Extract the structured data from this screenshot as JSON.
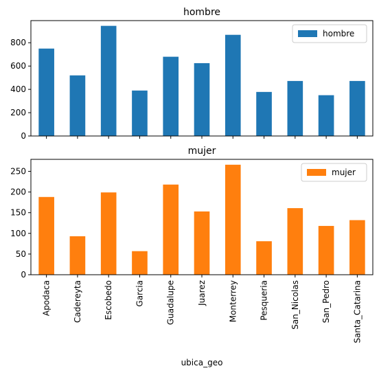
{
  "chart_data": [
    {
      "type": "bar",
      "title": "hombre",
      "categories": [
        "Apodaca",
        "Cadereyta",
        "Escobedo",
        "Garcia",
        "Guadalupe",
        "Juarez",
        "Monterrey",
        "Pesqueria",
        "San_Nicolas",
        "San_Pedro",
        "Santa_Catarina"
      ],
      "series": [
        {
          "name": "hombre",
          "color": "#1f77b4",
          "values": [
            750,
            520,
            945,
            390,
            680,
            625,
            868,
            378,
            472,
            350,
            472
          ]
        }
      ],
      "ylim": [
        0,
        990
      ],
      "yticks": [
        0,
        200,
        400,
        600,
        800
      ],
      "xlabel": "",
      "legend": "top-right",
      "grid": false,
      "show_xtick_labels": false
    },
    {
      "type": "bar",
      "title": "mujer",
      "categories": [
        "Apodaca",
        "Cadereyta",
        "Escobedo",
        "Garcia",
        "Guadalupe",
        "Juarez",
        "Monterrey",
        "Pesqueria",
        "San_Nicolas",
        "San_Pedro",
        "Santa_Catarina"
      ],
      "series": [
        {
          "name": "mujer",
          "color": "#ff7f0e",
          "values": [
            188,
            93,
            199,
            57,
            218,
            153,
            266,
            81,
            161,
            118,
            132
          ]
        }
      ],
      "ylim": [
        0,
        279
      ],
      "yticks": [
        0,
        50,
        100,
        150,
        200,
        250
      ],
      "xlabel": "ubica_geo",
      "legend": "top-right",
      "grid": false,
      "show_xtick_labels": true
    }
  ]
}
